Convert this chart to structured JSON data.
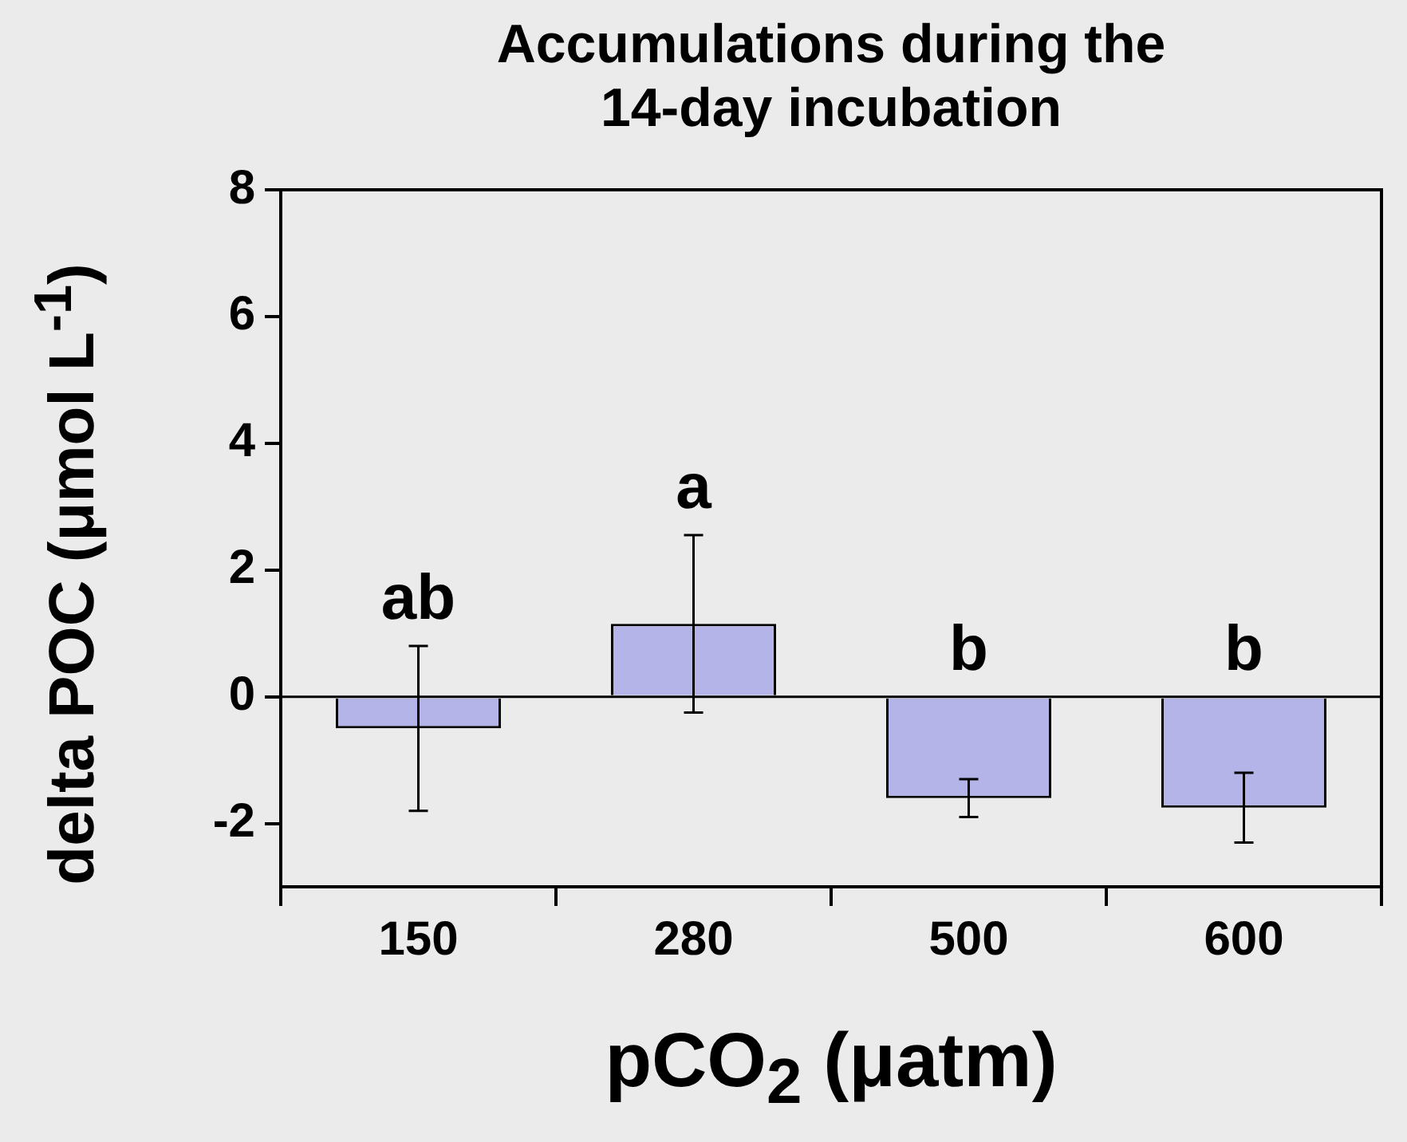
{
  "chart_data": {
    "type": "bar",
    "title": "Accumulations during the 14-day incubation",
    "xlabel": "pCO$_{2}$ (μatm)",
    "ylabel": "delta POC (μmol L$^{-1}$)",
    "categories": [
      "150",
      "280",
      "500",
      "600"
    ],
    "values": [
      -0.5,
      1.15,
      -1.6,
      -1.75
    ],
    "color": "#b4b4e8",
    "errors": [
      1.3,
      1.4,
      0.3,
      0.55
    ],
    "ylim": [
      -3,
      8
    ],
    "yticks": [
      -2,
      0,
      2,
      4,
      6,
      8
    ],
    "grid": false,
    "ref_lines": [
      {
        "axis": "y",
        "value": 0
      }
    ],
    "annotations": [
      "ab",
      "a",
      "b",
      "b"
    ]
  }
}
